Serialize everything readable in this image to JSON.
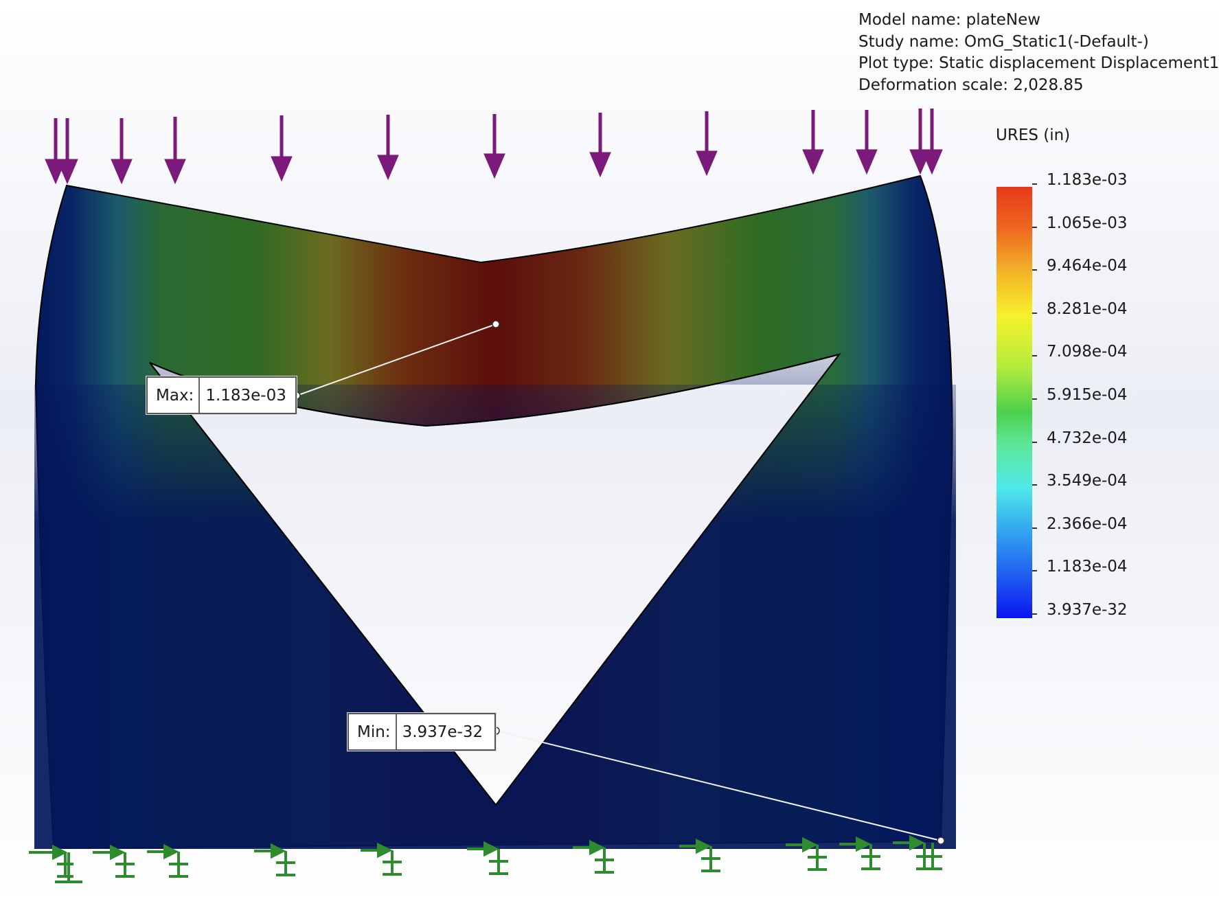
{
  "model_info": {
    "model_name": "Model name: plateNew",
    "study_name": "Study name: OmG_Static1(-Default-)",
    "plot_type": "Plot type: Static displacement Displacement1",
    "deformation_scale": "Deformation scale: 2,028.85"
  },
  "legend": {
    "title": "URES (in)",
    "ticks": [
      "1.183e-03",
      "1.065e-03",
      "9.464e-04",
      "8.281e-04",
      "7.098e-04",
      "5.915e-04",
      "4.732e-04",
      "3.549e-04",
      "2.366e-04",
      "1.183e-04",
      "3.937e-32"
    ]
  },
  "max_callout": {
    "label": "Max:",
    "value": "1.183e-03"
  },
  "min_callout": {
    "label": "Min:",
    "value": "3.937e-32"
  },
  "colors": {
    "load_arrow": "#7b1a7b",
    "fixture": "#2e8b2e",
    "model_dark_blue": "#041a5c"
  },
  "icons": {
    "loads": "downward-force-arrow-icon",
    "fixtures": "fixed-geometry-fixture-icon"
  }
}
